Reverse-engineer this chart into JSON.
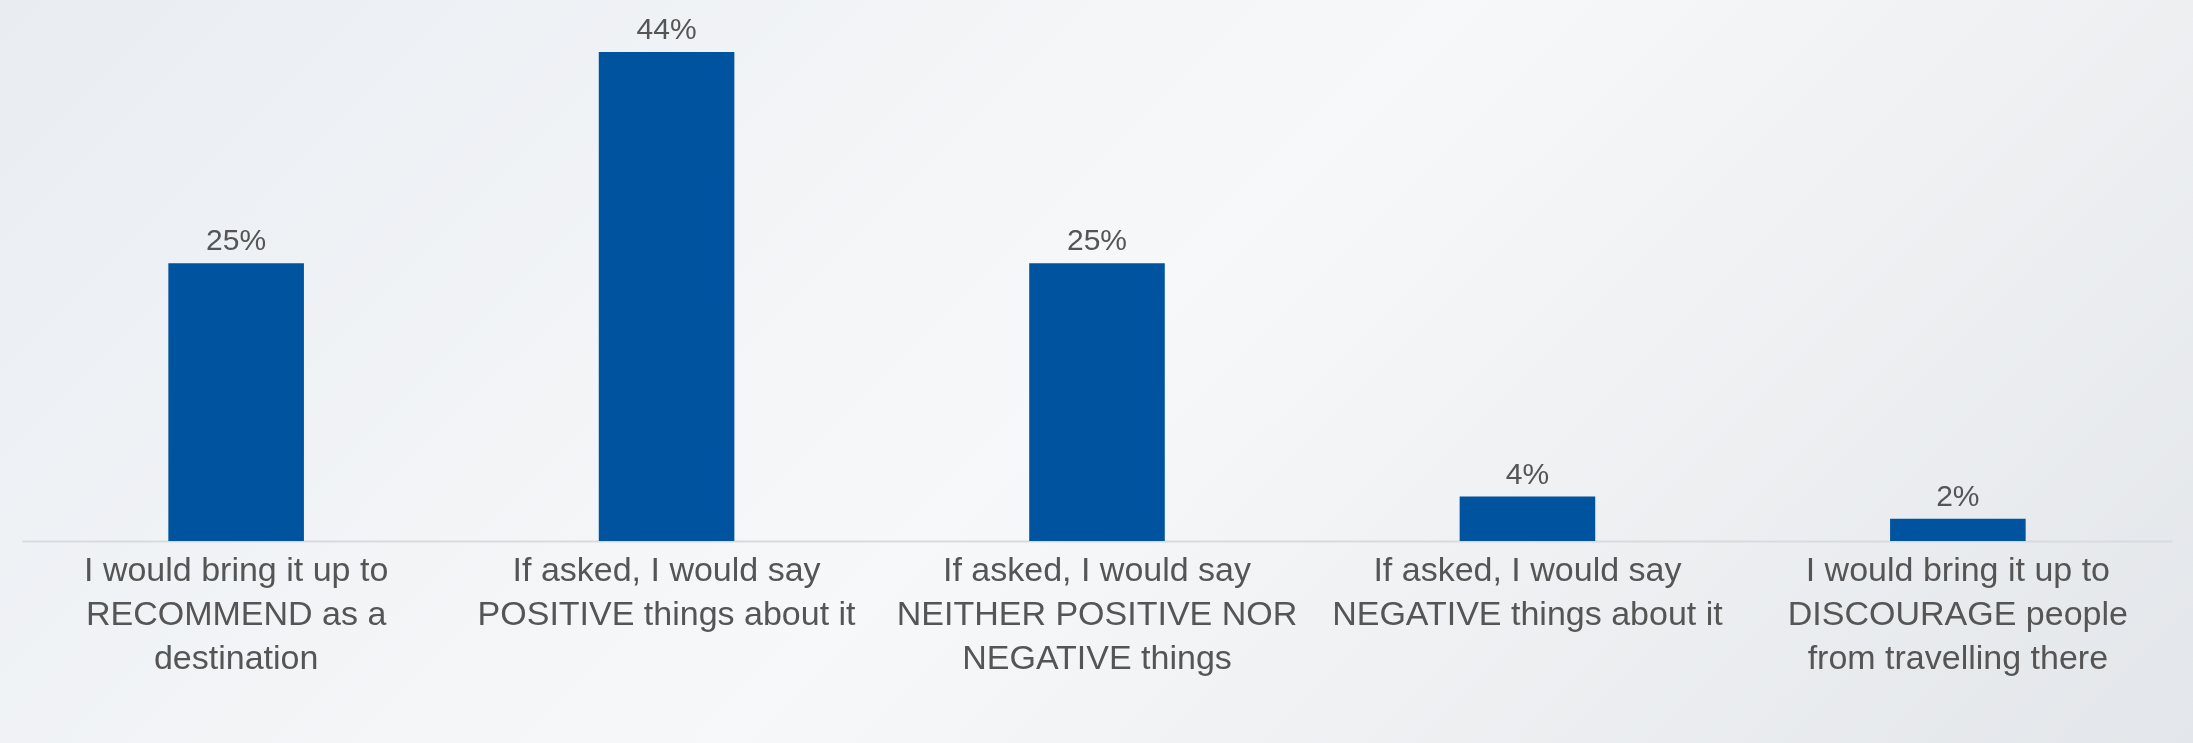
{
  "chart_data": {
    "type": "bar",
    "categories": [
      "I would bring it up to RECOMMEND as a destination",
      "If asked, I would say POSITIVE things about it",
      "If asked, I would say NEITHER POSITIVE NOR NEGATIVE things",
      "If asked, I would say NEGATIVE things about it",
      "I would bring it up to DISCOURAGE people from travelling there"
    ],
    "values": [
      25,
      44,
      25,
      4,
      2
    ],
    "value_labels": [
      "25%",
      "44%",
      "25%",
      "4%",
      "2%"
    ],
    "color": "#00539f"
  }
}
